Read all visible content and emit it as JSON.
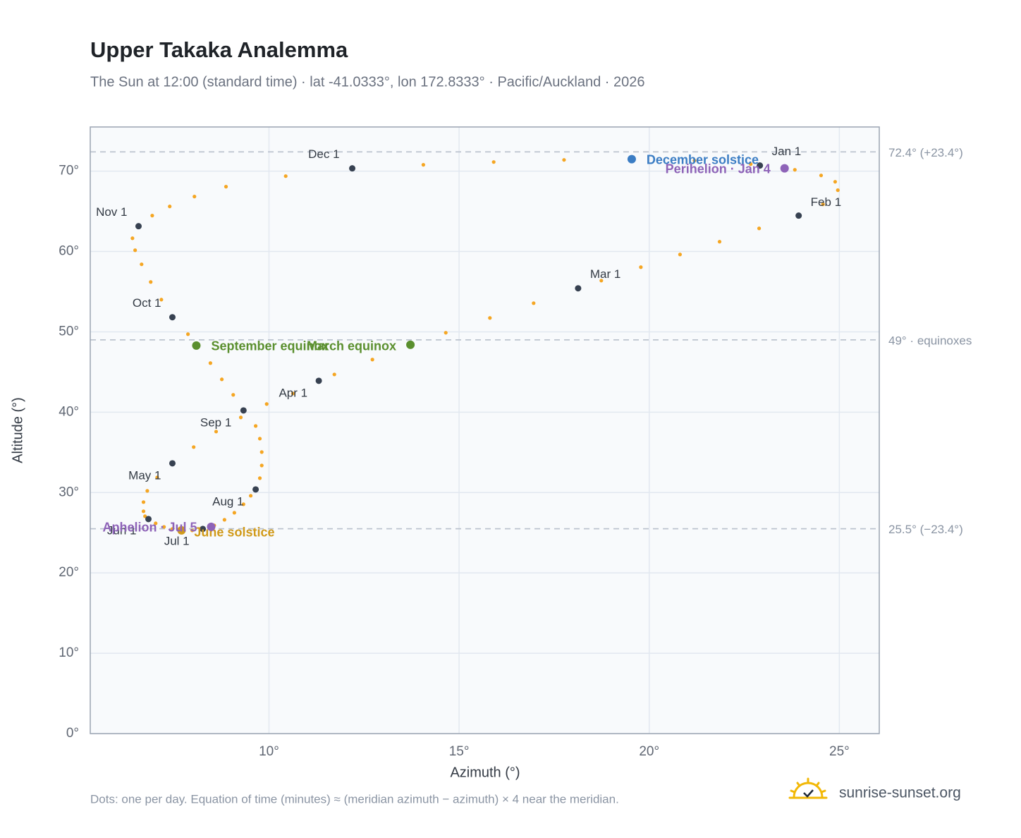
{
  "chart_data": {
    "type": "scatter",
    "title": "Upper Takaka Analemma",
    "subtitle": "The Sun at 12:00 (standard time) · lat -41.0333°, lon 172.8333° · Pacific/Auckland · 2026",
    "x_label": "Azimuth (°)",
    "y_label": "Altitude (°)",
    "footnote": "Dots: one per day. Equation of time (minutes) ≈ (meridian azimuth − azimuth) × 4 near the meridian.",
    "source": "sunrise-sunset.org",
    "xlim": [
      5.3,
      26.05
    ],
    "ylim": [
      0,
      75.5
    ],
    "xticks": [
      {
        "value": 10,
        "label": "10°"
      },
      {
        "value": 15,
        "label": "15°"
      },
      {
        "value": 20,
        "label": "20°"
      },
      {
        "value": 25,
        "label": "25°"
      }
    ],
    "yticks": [
      {
        "value": 0,
        "label": "0°"
      },
      {
        "value": 10,
        "label": "10°"
      },
      {
        "value": 20,
        "label": "20°"
      },
      {
        "value": 30,
        "label": "30°"
      },
      {
        "value": 40,
        "label": "40°"
      },
      {
        "value": 50,
        "label": "50°"
      },
      {
        "value": 60,
        "label": "60°"
      },
      {
        "value": 70,
        "label": "70°"
      }
    ],
    "grid": true,
    "series": [
      {
        "color": "#f5a623",
        "x": [
          22.91,
          23.83,
          24.52,
          24.89,
          24.96,
          24.57,
          23.93,
          22.89,
          21.85,
          20.81,
          19.78,
          18.74,
          18.13,
          16.96,
          15.81,
          14.65,
          13.72,
          12.72,
          11.72,
          11.31,
          10.63,
          9.94,
          9.26,
          8.61,
          8.02,
          7.46,
          7.06,
          6.8,
          6.7,
          6.7,
          6.74,
          6.83,
          7.02,
          7.24,
          7.46,
          7.7,
          7.98,
          8.26,
          8.56,
          8.83,
          9.09,
          9.33,
          9.52,
          9.65,
          9.76,
          9.81,
          9.81,
          9.76,
          9.65,
          9.33,
          9.06,
          8.76,
          8.46,
          8.09,
          7.87,
          7.46,
          7.17,
          6.89,
          6.65,
          6.48,
          6.41,
          6.57,
          6.93,
          7.39,
          8.04,
          8.87,
          10.44,
          12.19,
          14.06,
          15.91,
          17.76,
          19.54,
          21.19,
          22.67
        ],
        "values": [
          70.7,
          70.17,
          69.47,
          68.68,
          67.63,
          65.87,
          64.47,
          62.88,
          61.22,
          59.63,
          58.05,
          56.38,
          55.42,
          53.57,
          51.73,
          49.89,
          48.39,
          46.55,
          44.7,
          43.91,
          42.33,
          41.02,
          39.35,
          37.59,
          35.66,
          33.64,
          31.88,
          30.21,
          28.81,
          27.67,
          27.05,
          26.7,
          26.17,
          25.73,
          25.47,
          25.29,
          25.29,
          25.47,
          25.91,
          26.61,
          27.49,
          28.54,
          29.6,
          30.39,
          31.79,
          33.37,
          35.04,
          36.71,
          38.29,
          40.22,
          42.16,
          44.09,
          46.11,
          48.3,
          49.71,
          51.82,
          54.01,
          56.21,
          58.41,
          60.16,
          61.65,
          63.15,
          64.47,
          65.61,
          66.84,
          68.07,
          69.38,
          70.35,
          70.79,
          71.14,
          71.4,
          71.49,
          71.32,
          70.88
        ]
      }
    ],
    "month_markers": {
      "color": "#374151",
      "labels": [
        "Jan 1",
        "Feb 1",
        "Mar 1",
        "Apr 1",
        "May 1",
        "Jun 1",
        "Jul 1",
        "Aug 1",
        "Sep 1",
        "Oct 1",
        "Nov 1",
        "Dec 1"
      ],
      "x": [
        22.91,
        23.93,
        18.13,
        11.31,
        7.46,
        6.83,
        8.26,
        9.65,
        9.33,
        7.46,
        6.57,
        12.19
      ],
      "values": [
        70.7,
        64.47,
        55.42,
        43.91,
        33.64,
        26.7,
        25.47,
        30.39,
        40.22,
        51.82,
        63.15,
        70.35
      ]
    },
    "events": [
      {
        "label": "December solstice",
        "color": "#3b7dc4",
        "x": 19.54,
        "y": 71.49
      },
      {
        "label": "Perihelion · Jan 4",
        "color": "#8e63b8",
        "x": 23.56,
        "y": 70.35
      },
      {
        "label": "March equinox",
        "color": "#5a8f2e",
        "x": 13.72,
        "y": 48.39
      },
      {
        "label": "September equinox",
        "color": "#5a8f2e",
        "x": 8.09,
        "y": 48.3
      },
      {
        "label": "June solstice",
        "color": "#d19a1a",
        "x": 7.7,
        "y": 25.29
      },
      {
        "label": "Aphelion · Jul 5",
        "color": "#8e63b8",
        "x": 8.48,
        "y": 25.73
      }
    ],
    "reference_lines": [
      {
        "value": 72.4,
        "label": "72.4° (+23.4°)"
      },
      {
        "value": 49,
        "label": "49° · equinoxes"
      },
      {
        "value": 25.5,
        "label": "25.5° (−23.4°)"
      }
    ]
  }
}
